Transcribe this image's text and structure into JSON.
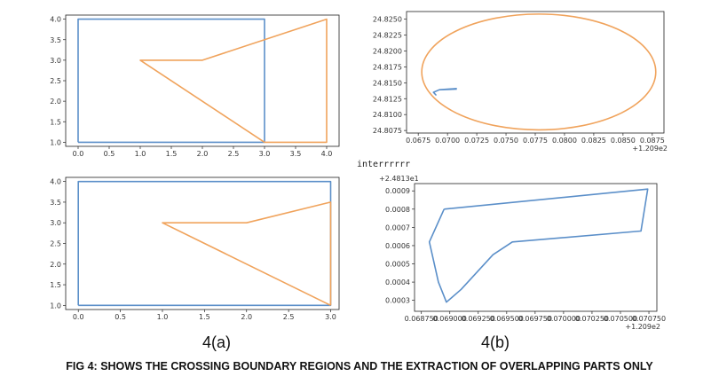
{
  "between_text": "interrrrrr",
  "sublabels": {
    "left": "4(a)",
    "right": "4(b)"
  },
  "caption": "FIG 4: SHOWS THE CROSSING BOUNDARY REGIONS AND THE EXTRACTION OF OVERLAPPING PARTS ONLY",
  "colors": {
    "blue": "#5b8fc9",
    "orange": "#f0a35c",
    "axis": "#222222"
  },
  "chart_data": [
    {
      "id": "top-left",
      "type": "line",
      "xlim": [
        -0.2,
        4.2
      ],
      "ylim": [
        0.9,
        4.1
      ],
      "x_ticks": [
        "0.0",
        "0.5",
        "1.0",
        "1.5",
        "2.0",
        "2.5",
        "3.0",
        "3.5",
        "4.0"
      ],
      "x_tick_values": [
        0,
        0.5,
        1,
        1.5,
        2,
        2.5,
        3,
        3.5,
        4
      ],
      "y_ticks": [
        "1.0",
        "1.5",
        "2.0",
        "2.5",
        "3.0",
        "3.5",
        "4.0"
      ],
      "y_tick_values": [
        1,
        1.5,
        2,
        2.5,
        3,
        3.5,
        4
      ],
      "series": [
        {
          "color": "blue",
          "points": [
            [
              0,
              1
            ],
            [
              0,
              4
            ],
            [
              3,
              4
            ],
            [
              3,
              1
            ],
            [
              0,
              1
            ]
          ]
        },
        {
          "color": "orange",
          "points": [
            [
              3,
              1
            ],
            [
              4,
              1
            ],
            [
              4,
              4
            ],
            [
              2,
              3
            ],
            [
              1,
              3
            ],
            [
              3,
              1
            ]
          ]
        }
      ]
    },
    {
      "id": "top-right",
      "type": "line",
      "xlim": [
        0.0665,
        0.0885
      ],
      "ylim": [
        24.8071,
        24.8262
      ],
      "x_ticks": [
        "0.0675",
        "0.0700",
        "0.0725",
        "0.0750",
        "0.0775",
        "0.0800",
        "0.0825",
        "0.0850",
        "0.0875"
      ],
      "x_tick_values": [
        0.0675,
        0.07,
        0.0725,
        0.075,
        0.0775,
        0.08,
        0.0825,
        0.085,
        0.0875
      ],
      "y_ticks": [
        "24.8075",
        "24.8100",
        "24.8125",
        "24.8150",
        "24.8175",
        "24.8200",
        "24.8225",
        "24.8250"
      ],
      "y_tick_values": [
        24.8075,
        24.81,
        24.8125,
        24.815,
        24.8175,
        24.82,
        24.8225,
        24.825
      ],
      "x_offset_label": "+1.209e2",
      "series": [
        {
          "color": "orange",
          "ellipse": {
            "cx": 0.0778,
            "cy": 24.8167,
            "rx": 0.01,
            "ry": 0.0091
          }
        },
        {
          "color": "blue",
          "points": [
            [
              0.0708,
              24.814
            ],
            [
              0.0693,
              24.8139
            ],
            [
              0.0688,
              24.8135
            ],
            [
              0.069,
              24.8131
            ],
            [
              0.0688,
              24.8135
            ],
            [
              0.0693,
              24.8139
            ],
            [
              0.0708,
              24.8141
            ]
          ]
        }
      ]
    },
    {
      "id": "bottom-left",
      "type": "line",
      "xlim": [
        -0.15,
        3.1
      ],
      "ylim": [
        0.9,
        4.1
      ],
      "x_ticks": [
        "0.0",
        "0.5",
        "1.0",
        "1.5",
        "2.0",
        "2.5",
        "3.0"
      ],
      "x_tick_values": [
        0,
        0.5,
        1,
        1.5,
        2,
        2.5,
        3
      ],
      "y_ticks": [
        "1.0",
        "1.5",
        "2.0",
        "2.5",
        "3.0",
        "3.5",
        "4.0"
      ],
      "y_tick_values": [
        1,
        1.5,
        2,
        2.5,
        3,
        3.5,
        4
      ],
      "series": [
        {
          "color": "blue",
          "points": [
            [
              0,
              1
            ],
            [
              0,
              4
            ],
            [
              3,
              4
            ],
            [
              3,
              1
            ],
            [
              0,
              1
            ]
          ]
        },
        {
          "color": "orange",
          "points": [
            [
              3,
              1
            ],
            [
              3,
              3.5
            ],
            [
              2,
              3
            ],
            [
              1,
              3
            ],
            [
              3,
              1
            ]
          ]
        }
      ]
    },
    {
      "id": "bottom-right",
      "type": "line",
      "xlim": [
        0.06869,
        0.07082
      ],
      "ylim": [
        0.00024,
        0.00094
      ],
      "x_ticks": [
        "0.068750",
        "0.069000",
        "0.069250",
        "0.069500",
        "0.069750",
        "0.070000",
        "0.070250",
        "0.070500",
        "0.070750"
      ],
      "x_tick_values": [
        0.06875,
        0.069,
        0.06925,
        0.0695,
        0.06975,
        0.07,
        0.07025,
        0.0705,
        0.07075
      ],
      "y_ticks": [
        "0.0003",
        "0.0004",
        "0.0005",
        "0.0006",
        "0.0007",
        "0.0008",
        "0.0009"
      ],
      "y_tick_values": [
        0.0003,
        0.0004,
        0.0005,
        0.0006,
        0.0007,
        0.0008,
        0.0009
      ],
      "x_offset_label": "+1.209e2",
      "y_offset_label": "+2.4813e1",
      "series": [
        {
          "color": "blue",
          "points": [
            [
              0.06895,
              0.0008
            ],
            [
              0.07074,
              0.00091
            ],
            [
              0.07068,
              0.00068
            ],
            [
              0.06955,
              0.00062
            ],
            [
              0.06938,
              0.00055
            ],
            [
              0.0691,
              0.00036
            ],
            [
              0.06897,
              0.00029
            ],
            [
              0.0689,
              0.0004
            ],
            [
              0.06882,
              0.00062
            ],
            [
              0.06895,
              0.0008
            ]
          ]
        }
      ]
    }
  ]
}
